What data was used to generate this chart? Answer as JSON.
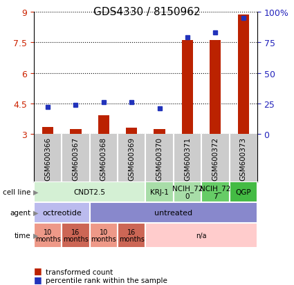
{
  "title": "GDS4330 / 8150962",
  "samples": [
    "GSM600366",
    "GSM600367",
    "GSM600368",
    "GSM600369",
    "GSM600370",
    "GSM600371",
    "GSM600372",
    "GSM600373"
  ],
  "transformed_count": [
    3.35,
    3.25,
    3.9,
    3.3,
    3.25,
    7.6,
    7.6,
    8.85
  ],
  "percentile_rank": [
    22,
    24,
    26,
    26,
    21,
    79,
    83,
    95
  ],
  "ylim_left": [
    3,
    9
  ],
  "ylim_right": [
    0,
    100
  ],
  "yticks_left": [
    3,
    4.5,
    6,
    7.5,
    9
  ],
  "yticks_right": [
    0,
    25,
    50,
    75,
    100
  ],
  "ytick_labels_left": [
    "3",
    "4.5",
    "6",
    "7.5",
    "9"
  ],
  "ytick_labels_right": [
    "0",
    "25",
    "50",
    "75",
    "100%"
  ],
  "bar_color": "#bb2200",
  "dot_color": "#2233bb",
  "cell_line_groups": [
    {
      "label": "CNDT2.5",
      "start": 0,
      "end": 4,
      "color": "#d4f0d4"
    },
    {
      "label": "KRJ-1",
      "start": 4,
      "end": 5,
      "color": "#a8dda8"
    },
    {
      "label": "NCIH_72\n0",
      "start": 5,
      "end": 6,
      "color": "#a8dda8"
    },
    {
      "label": "NCIH_72\n7",
      "start": 6,
      "end": 7,
      "color": "#66cc66"
    },
    {
      "label": "QGP",
      "start": 7,
      "end": 8,
      "color": "#44bb44"
    }
  ],
  "agent_groups": [
    {
      "label": "octreotide",
      "start": 0,
      "end": 2,
      "color": "#bbbbee"
    },
    {
      "label": "untreated",
      "start": 2,
      "end": 8,
      "color": "#8888cc"
    }
  ],
  "time_groups": [
    {
      "label": "10\nmonths",
      "start": 0,
      "end": 1,
      "color": "#ee9988"
    },
    {
      "label": "16\nmonths",
      "start": 1,
      "end": 2,
      "color": "#cc6655"
    },
    {
      "label": "10\nmonths",
      "start": 2,
      "end": 3,
      "color": "#ee9988"
    },
    {
      "label": "16\nmonths",
      "start": 3,
      "end": 4,
      "color": "#cc6655"
    },
    {
      "label": "n/a",
      "start": 4,
      "end": 8,
      "color": "#ffcccc"
    }
  ],
  "legend_bar_label": "transformed count",
  "legend_dot_label": "percentile rank within the sample",
  "sample_bg": "#cccccc",
  "sample_divider": "#ffffff"
}
